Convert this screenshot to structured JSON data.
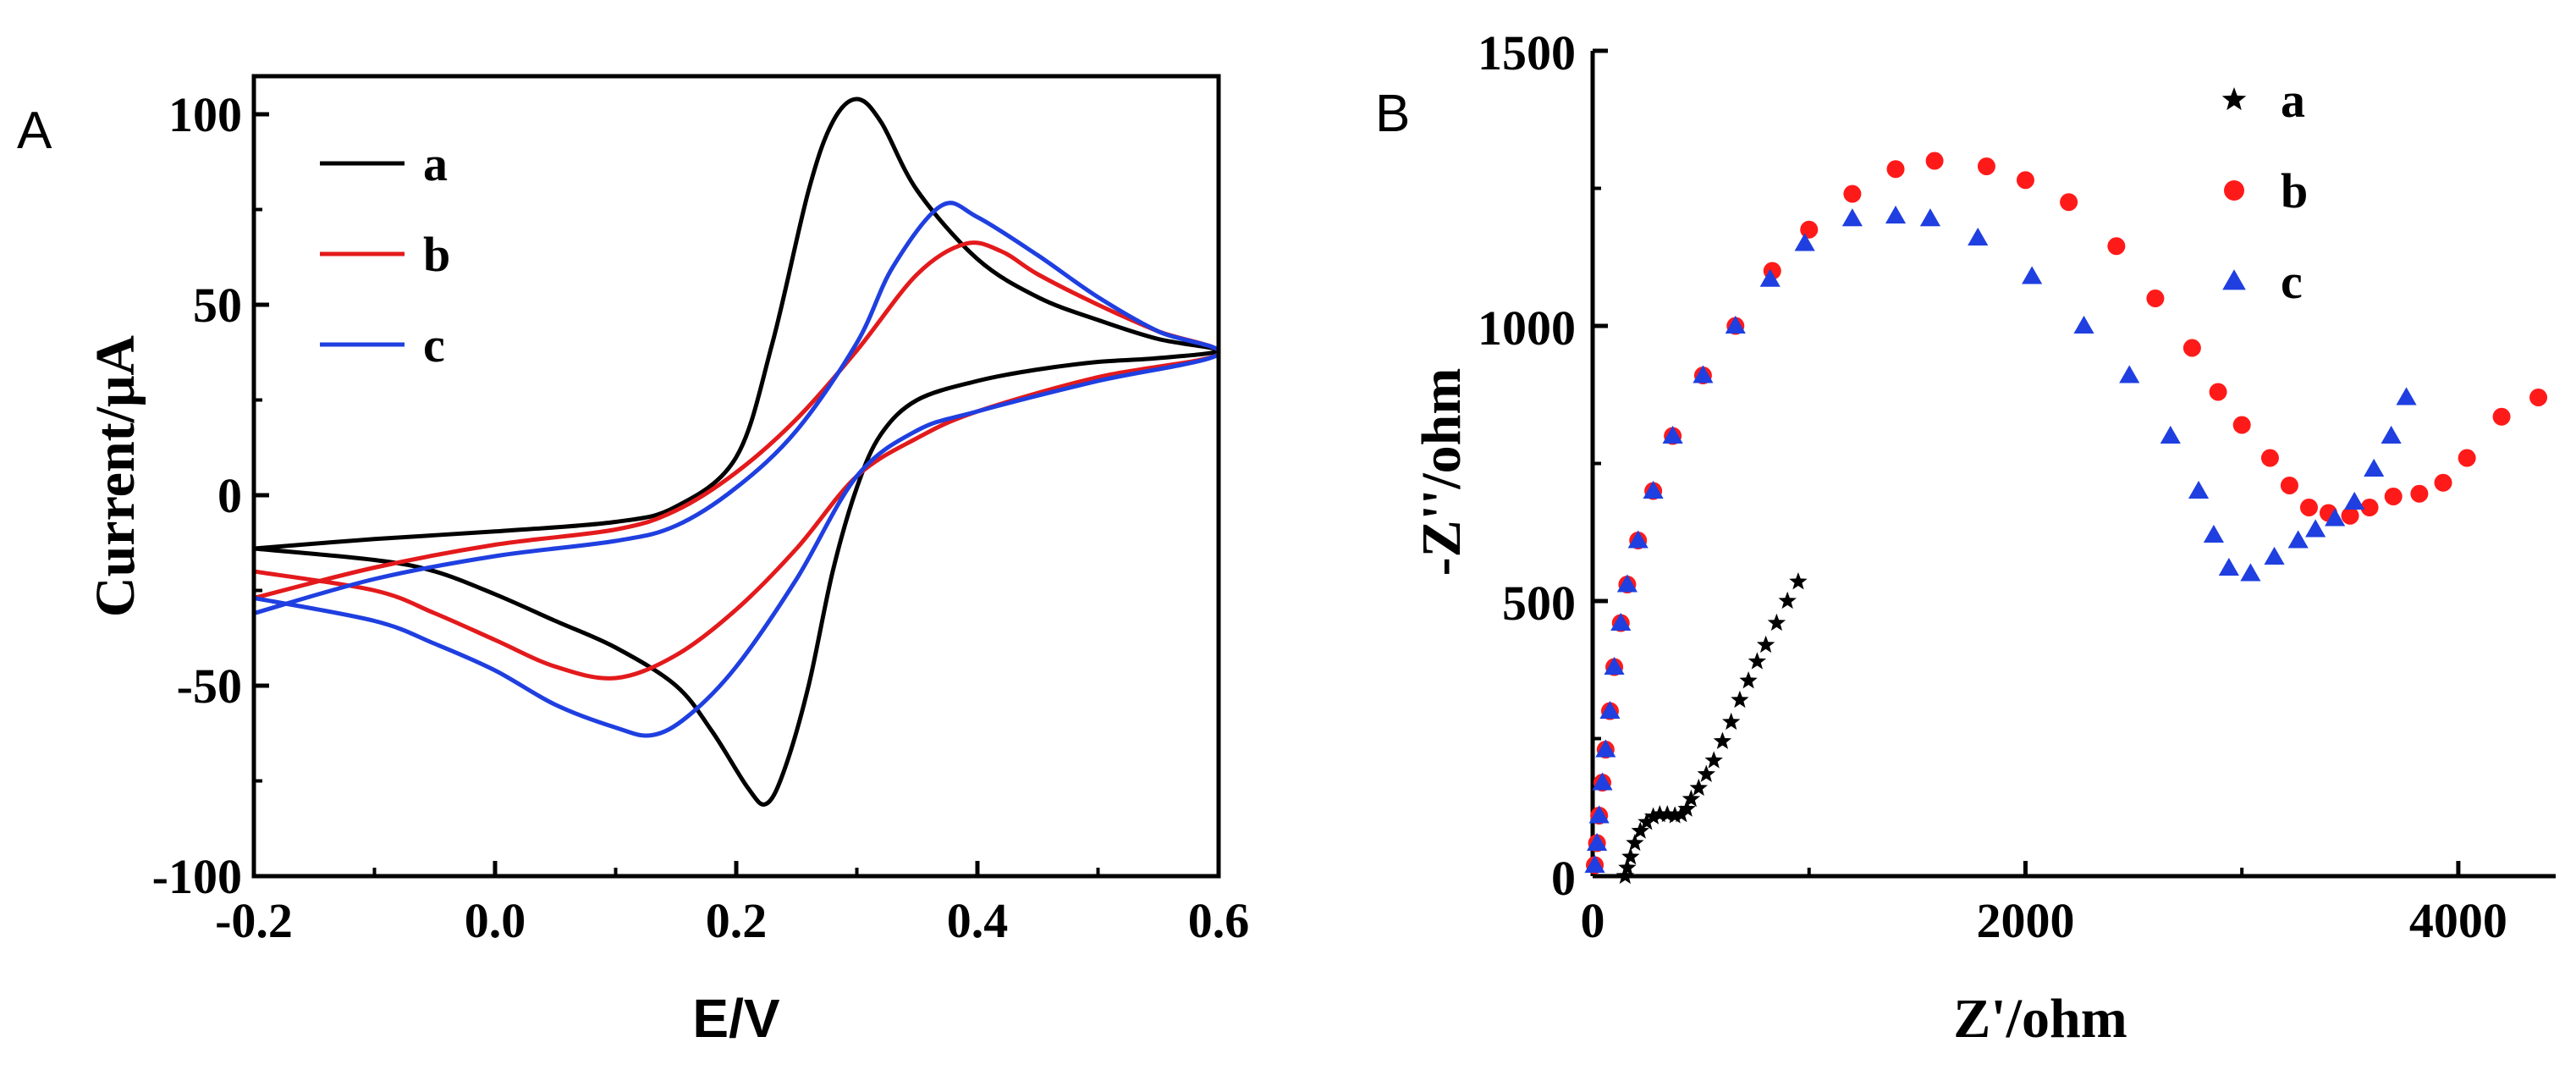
{
  "chart_data": [
    {
      "panel": "A",
      "type": "line",
      "title": "",
      "xlabel": "E/V",
      "ylabel": "Current/μA",
      "xlim": [
        -0.2,
        0.6
      ],
      "ylim": [
        -100,
        110
      ],
      "xticks": [
        -0.2,
        0.0,
        0.2,
        0.4,
        0.6
      ],
      "xtick_labels": [
        "-0.2",
        "0.0",
        "0.2",
        "0.4",
        "0.6"
      ],
      "yticks": [
        -100,
        -50,
        0,
        50,
        100
      ],
      "ytick_labels": [
        "-100",
        "-50",
        "0",
        "50",
        "100"
      ],
      "legend_position": "top-left",
      "series": [
        {
          "name": "a",
          "color": "#000000",
          "forward": [
            [
              -0.2,
              -14
            ],
            [
              -0.1,
              -11.5
            ],
            [
              0.0,
              -9.5
            ],
            [
              0.1,
              -7
            ],
            [
              0.15,
              -3
            ],
            [
              0.2,
              10
            ],
            [
              0.23,
              40
            ],
            [
              0.26,
              80
            ],
            [
              0.28,
              98
            ],
            [
              0.3,
              104
            ],
            [
              0.32,
              98
            ],
            [
              0.35,
              80
            ],
            [
              0.4,
              62
            ],
            [
              0.45,
              52
            ],
            [
              0.5,
              46
            ],
            [
              0.55,
              41
            ],
            [
              0.6,
              38
            ]
          ],
          "reverse": [
            [
              0.6,
              38
            ],
            [
              0.55,
              36
            ],
            [
              0.5,
              35
            ],
            [
              0.45,
              33
            ],
            [
              0.4,
              30
            ],
            [
              0.35,
              25
            ],
            [
              0.32,
              16
            ],
            [
              0.3,
              2
            ],
            [
              0.28,
              -20
            ],
            [
              0.26,
              -50
            ],
            [
              0.24,
              -72
            ],
            [
              0.225,
              -81
            ],
            [
              0.21,
              -77
            ],
            [
              0.18,
              -62
            ],
            [
              0.15,
              -50
            ],
            [
              0.1,
              -40
            ],
            [
              0.05,
              -33
            ],
            [
              0.0,
              -26
            ],
            [
              -0.05,
              -20
            ],
            [
              -0.1,
              -17
            ],
            [
              -0.2,
              -14
            ]
          ]
        },
        {
          "name": "b",
          "color": "#e31a1c",
          "forward": [
            [
              -0.2,
              -27
            ],
            [
              -0.1,
              -19
            ],
            [
              0.0,
              -13
            ],
            [
              0.1,
              -9
            ],
            [
              0.15,
              -4
            ],
            [
              0.2,
              6
            ],
            [
              0.25,
              20
            ],
            [
              0.3,
              38
            ],
            [
              0.35,
              58
            ],
            [
              0.39,
              66
            ],
            [
              0.42,
              64
            ],
            [
              0.45,
              58
            ],
            [
              0.5,
              50
            ],
            [
              0.55,
              43
            ],
            [
              0.6,
              37
            ]
          ],
          "reverse": [
            [
              0.6,
              37
            ],
            [
              0.5,
              31
            ],
            [
              0.4,
              22
            ],
            [
              0.35,
              15
            ],
            [
              0.3,
              5
            ],
            [
              0.25,
              -14
            ],
            [
              0.2,
              -30
            ],
            [
              0.15,
              -42
            ],
            [
              0.1,
              -48
            ],
            [
              0.05,
              -45
            ],
            [
              0.0,
              -38
            ],
            [
              -0.05,
              -31
            ],
            [
              -0.1,
              -25
            ],
            [
              -0.2,
              -20
            ]
          ]
        },
        {
          "name": "c",
          "color": "#1f3fe0",
          "forward": [
            [
              -0.2,
              -31
            ],
            [
              -0.1,
              -22
            ],
            [
              0.0,
              -16
            ],
            [
              0.1,
              -12
            ],
            [
              0.15,
              -8
            ],
            [
              0.2,
              2
            ],
            [
              0.25,
              17
            ],
            [
              0.3,
              40
            ],
            [
              0.33,
              60
            ],
            [
              0.37,
              76
            ],
            [
              0.4,
              73
            ],
            [
              0.45,
              63
            ],
            [
              0.5,
              52
            ],
            [
              0.55,
              43
            ],
            [
              0.6,
              37
            ]
          ],
          "reverse": [
            [
              0.6,
              37
            ],
            [
              0.5,
              30
            ],
            [
              0.4,
              22
            ],
            [
              0.35,
              17
            ],
            [
              0.3,
              5
            ],
            [
              0.25,
              -22
            ],
            [
              0.2,
              -45
            ],
            [
              0.16,
              -58
            ],
            [
              0.13,
              -63
            ],
            [
              0.1,
              -61
            ],
            [
              0.05,
              -55
            ],
            [
              0.0,
              -46
            ],
            [
              -0.05,
              -39
            ],
            [
              -0.1,
              -33
            ],
            [
              -0.2,
              -27
            ]
          ]
        }
      ]
    },
    {
      "panel": "B",
      "type": "scatter",
      "title": "",
      "xlabel": "Z'/ohm",
      "ylabel": "-Z''/ohm",
      "xlim": [
        0,
        4450
      ],
      "ylim": [
        0,
        1500
      ],
      "xticks": [
        0,
        2000,
        4000
      ],
      "xtick_labels": [
        "0",
        "2000",
        "4000"
      ],
      "yticks": [
        0,
        500,
        1000,
        1500
      ],
      "ytick_labels": [
        "0",
        "500",
        "1000",
        "1500"
      ],
      "legend_position": "top-right",
      "series": [
        {
          "name": "a",
          "color": "#000000",
          "marker": "star",
          "points": [
            [
              150,
              0
            ],
            [
              160,
              15
            ],
            [
              175,
              35
            ],
            [
              195,
              60
            ],
            [
              220,
              82
            ],
            [
              250,
              98
            ],
            [
              280,
              108
            ],
            [
              310,
              112
            ],
            [
              345,
              112
            ],
            [
              380,
              110
            ],
            [
              410,
              112
            ],
            [
              435,
              122
            ],
            [
              455,
              140
            ],
            [
              490,
              160
            ],
            [
              525,
              185
            ],
            [
              560,
              210
            ],
            [
              600,
              245
            ],
            [
              640,
              280
            ],
            [
              680,
              320
            ],
            [
              720,
              355
            ],
            [
              760,
              390
            ],
            [
              800,
              420
            ],
            [
              850,
              460
            ],
            [
              900,
              500
            ],
            [
              950,
              535
            ]
          ]
        },
        {
          "name": "b",
          "color": "#ff1a1a",
          "marker": "circle",
          "points": [
            [
              10,
              20
            ],
            [
              20,
              60
            ],
            [
              30,
              110
            ],
            [
              45,
              170
            ],
            [
              60,
              230
            ],
            [
              80,
              300
            ],
            [
              100,
              380
            ],
            [
              130,
              460
            ],
            [
              160,
              530
            ],
            [
              210,
              610
            ],
            [
              280,
              700
            ],
            [
              370,
              800
            ],
            [
              510,
              910
            ],
            [
              660,
              1000
            ],
            [
              830,
              1100
            ],
            [
              1000,
              1175
            ],
            [
              1200,
              1240
            ],
            [
              1400,
              1285
            ],
            [
              1580,
              1300
            ],
            [
              1820,
              1290
            ],
            [
              2000,
              1265
            ],
            [
              2200,
              1225
            ],
            [
              2420,
              1145
            ],
            [
              2600,
              1050
            ],
            [
              2770,
              960
            ],
            [
              2890,
              880
            ],
            [
              3000,
              820
            ],
            [
              3130,
              760
            ],
            [
              3220,
              710
            ],
            [
              3310,
              670
            ],
            [
              3400,
              660
            ],
            [
              3500,
              655
            ],
            [
              3590,
              670
            ],
            [
              3700,
              690
            ],
            [
              3820,
              695
            ],
            [
              3930,
              715
            ],
            [
              4040,
              760
            ],
            [
              4200,
              835
            ],
            [
              4370,
              870
            ]
          ]
        },
        {
          "name": "c",
          "color": "#1f3fe0",
          "marker": "triangle",
          "points": [
            [
              10,
              20
            ],
            [
              20,
              60
            ],
            [
              30,
              110
            ],
            [
              45,
              170
            ],
            [
              60,
              230
            ],
            [
              80,
              300
            ],
            [
              100,
              380
            ],
            [
              130,
              460
            ],
            [
              160,
              530
            ],
            [
              210,
              610
            ],
            [
              280,
              700
            ],
            [
              370,
              800
            ],
            [
              510,
              910
            ],
            [
              660,
              1000
            ],
            [
              820,
              1085
            ],
            [
              980,
              1150
            ],
            [
              1200,
              1195
            ],
            [
              1400,
              1200
            ],
            [
              1560,
              1195
            ],
            [
              1780,
              1160
            ],
            [
              2030,
              1090
            ],
            [
              2270,
              1000
            ],
            [
              2480,
              910
            ],
            [
              2670,
              800
            ],
            [
              2800,
              700
            ],
            [
              2870,
              620
            ],
            [
              2940,
              560
            ],
            [
              3040,
              550
            ],
            [
              3150,
              580
            ],
            [
              3260,
              610
            ],
            [
              3340,
              630
            ],
            [
              3430,
              650
            ],
            [
              3520,
              680
            ],
            [
              3610,
              740
            ],
            [
              3690,
              800
            ],
            [
              3760,
              870
            ]
          ]
        }
      ]
    }
  ]
}
